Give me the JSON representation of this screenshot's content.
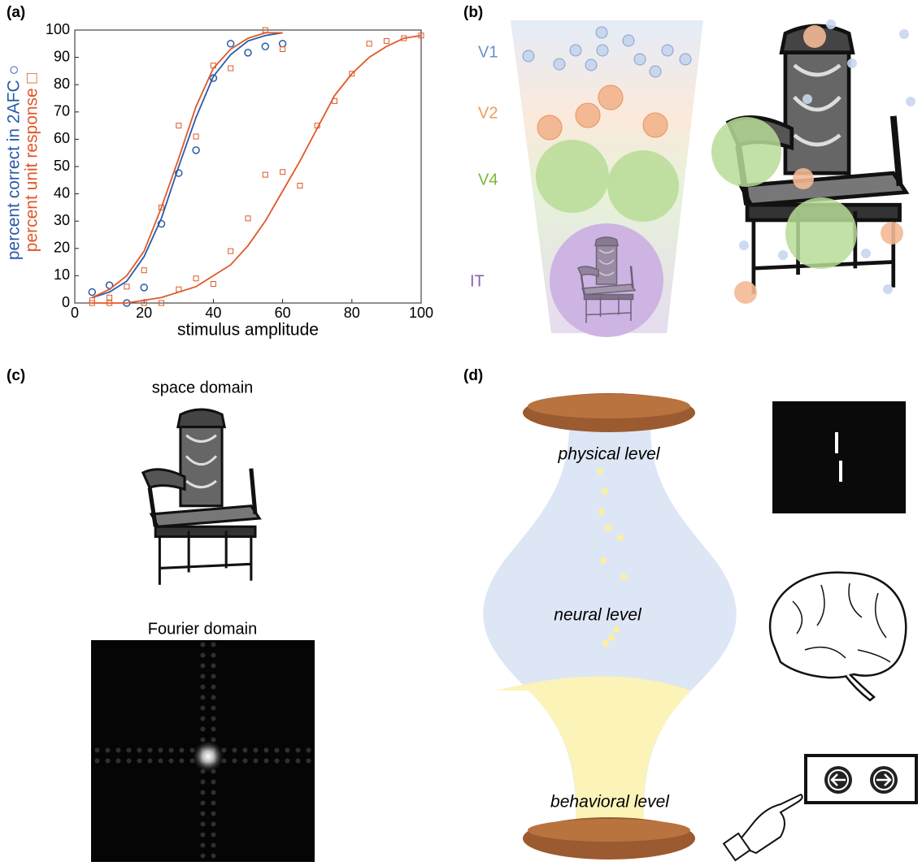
{
  "panel_labels": [
    "(a)",
    "(b)",
    "(c)",
    "(d)"
  ],
  "chart_data": {
    "type": "scatter",
    "xlabel": "stimulus amplitude",
    "ylabel": [
      {
        "text": "percent correct in 2AFC ○",
        "color": "#2b5aa8"
      },
      {
        "text": "percent unit response □",
        "color": "#e0582a"
      }
    ],
    "xlim": [
      0,
      100
    ],
    "xticks": [
      0,
      20,
      40,
      60,
      80,
      100
    ],
    "ylim": [
      0,
      100
    ],
    "yticks": [
      0,
      10,
      20,
      30,
      40,
      50,
      60,
      70,
      80,
      90,
      100
    ],
    "series": [
      {
        "color": "#2b5aa8",
        "marker": "circle",
        "x": [
          5,
          10,
          15,
          20,
          25,
          30,
          35,
          40,
          45,
          50,
          55,
          60
        ],
        "values": [
          4,
          6.5,
          0,
          5.7,
          29,
          47.6,
          56,
          82.4,
          95,
          91.7,
          94,
          95
        ]
      },
      {
        "color": "#e0582a",
        "marker": "square",
        "x": [
          5,
          5,
          10,
          10,
          15,
          20,
          20,
          25,
          25,
          30,
          30,
          35,
          35,
          40,
          40,
          45,
          45,
          50,
          55,
          55,
          60,
          60,
          65,
          70,
          75,
          80,
          85,
          90,
          95,
          100
        ],
        "values": [
          1,
          0,
          0,
          2,
          6,
          12,
          0,
          35,
          0,
          65,
          5,
          61,
          9,
          87,
          7,
          86,
          19,
          31,
          100,
          47,
          93,
          48,
          43,
          65,
          74,
          84,
          95,
          96,
          97,
          98
        ]
      },
      {
        "color": "#2b5aa8",
        "marker": "line",
        "x": [
          5,
          10,
          15,
          20,
          25,
          30,
          35,
          40,
          45,
          50,
          55,
          60
        ],
        "values": [
          2,
          4,
          8,
          17,
          31,
          50,
          68,
          83,
          91,
          96,
          98,
          99
        ]
      },
      {
        "color": "#e0582a",
        "marker": "line",
        "x": [
          5,
          10,
          15,
          20,
          25,
          30,
          35,
          40,
          45,
          50,
          55,
          60
        ],
        "values": [
          2,
          5,
          10,
          19,
          35,
          53,
          72,
          86,
          93,
          97,
          99,
          99
        ]
      },
      {
        "color": "#e0582a",
        "marker": "line",
        "x": [
          5,
          10,
          15,
          20,
          25,
          30,
          35,
          40,
          45,
          50,
          55,
          60,
          65,
          70,
          75,
          80,
          85,
          90,
          95,
          100
        ],
        "values": [
          0,
          0,
          0,
          1,
          2,
          4,
          6,
          10,
          14,
          21,
          30,
          41,
          52,
          64,
          76,
          84,
          90,
          94,
          97,
          98
        ]
      }
    ]
  },
  "hierarchy": {
    "labels": [
      {
        "text": "V1",
        "color": "#6a8fca"
      },
      {
        "text": "V2",
        "color": "#f09a5a"
      },
      {
        "text": "V4",
        "color": "#7ab83a"
      },
      {
        "text": "IT",
        "color": "#8a5fb0"
      }
    ]
  },
  "domains": {
    "space": "space domain",
    "fourier": "Fourier domain"
  },
  "levels": [
    "physical level",
    "neural level",
    "behavioral level"
  ]
}
